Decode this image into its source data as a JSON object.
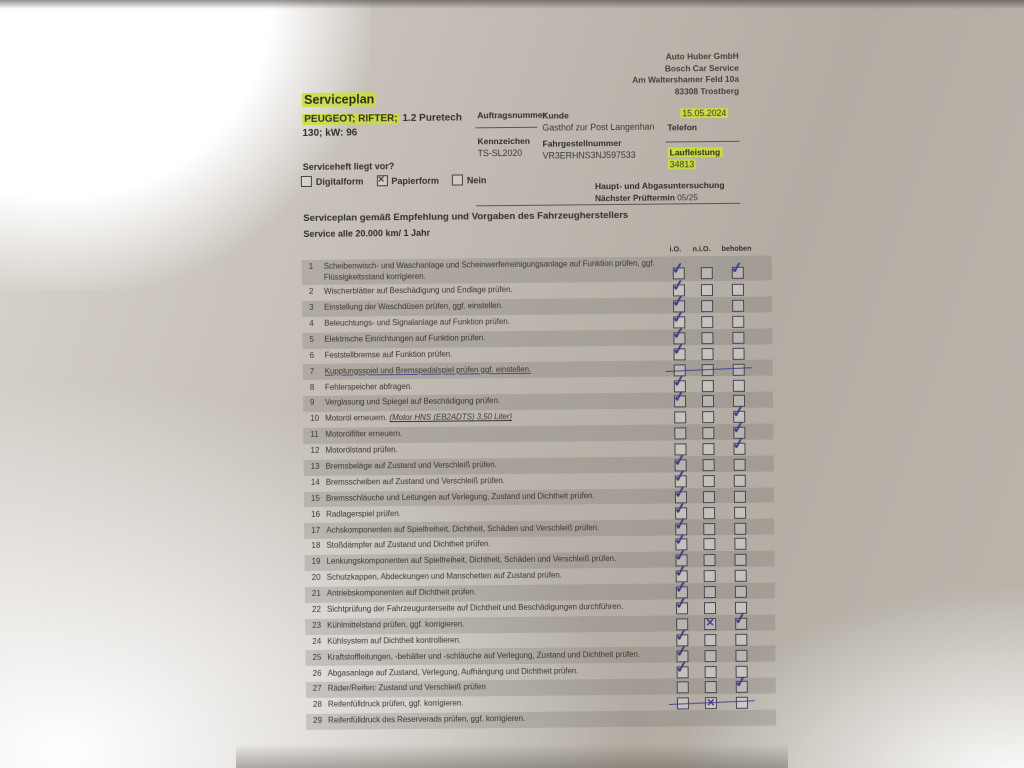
{
  "colors": {
    "highlight": "#cbdf37",
    "ink": "#3c3b8e"
  },
  "letterhead": {
    "lines": [
      "Auto Huber GmbH",
      "Bosch Car Service",
      "Am Waltershamer Feld 10a",
      "83308 Trostberg"
    ]
  },
  "header": {
    "title": "Serviceplan",
    "vehicle_highlight": "PEUGEOT; RIFTER;",
    "vehicle_rest": " 1.2 Puretech",
    "vehicle_line2": "130; kW: 96",
    "serviceheft_question": "Serviceheft liegt vor?",
    "serviceheft_options": [
      {
        "label": "Digitalform",
        "checked": false
      },
      {
        "label": "Papierform",
        "checked": true
      },
      {
        "label": "Nein",
        "checked": false
      }
    ],
    "auftragsnummer_label": "Auftragsnummer",
    "kunde_label": "Kunde",
    "kunde_value": "Gasthof zur Post Langenhan",
    "kennzeichen_label": "Kennzeichen",
    "kennzeichen_value": "TS-SL2020",
    "fahrgestellnummer_label": "Fahrgestellnummer",
    "fahrgestellnummer_value": "VR3ERHNS3NJ597533",
    "date_value": "15.05.2024",
    "telefon_label": "Telefon",
    "laufleistung_label": "Laufleistung",
    "laufleistung_value": "34813",
    "inspection_line1": "Haupt- und Abgasuntersuchung",
    "inspection_label": "Nächster Prüftermin",
    "inspection_value": "05/25"
  },
  "section": {
    "heading": "Serviceplan gemäß Empfehlung und Vorgaben des Fahrzeugherstellers",
    "subheading": "Service alle 20.000 km/ 1 Jahr"
  },
  "checklist": {
    "columns": [
      "i.O.",
      "n.i.O.",
      "behoben"
    ],
    "items": [
      {
        "num": 1,
        "text": "Scheibenwisch- und Waschanlage und Scheinwerferreinigungsanlage auf Funktion prüfen, ggf. Flüssigkeitsstand korrigieren.",
        "note": "",
        "io": "check",
        "nio": "",
        "behoben": "check",
        "struck": false,
        "text_struck": false
      },
      {
        "num": 2,
        "text": "Wischerblätter auf Beschädigung und Endlage prüfen.",
        "note": "",
        "io": "check",
        "nio": "",
        "behoben": "",
        "struck": false,
        "text_struck": false
      },
      {
        "num": 3,
        "text": "Einstellung der Waschdüsen prüfen, ggf. einstellen.",
        "note": "",
        "io": "check",
        "nio": "",
        "behoben": "",
        "struck": false,
        "text_struck": false
      },
      {
        "num": 4,
        "text": "Beleuchtungs- und Signalanlage auf Funktion prüfen.",
        "note": "",
        "io": "check",
        "nio": "",
        "behoben": "",
        "struck": false,
        "text_struck": false
      },
      {
        "num": 5,
        "text": "Elektrische Einrichtungen auf Funktion prüfen.",
        "note": "",
        "io": "check",
        "nio": "",
        "behoben": "",
        "struck": false,
        "text_struck": false
      },
      {
        "num": 6,
        "text": "Feststellbremse auf Funktion prüfen.",
        "note": "",
        "io": "check",
        "nio": "",
        "behoben": "",
        "struck": false,
        "text_struck": false
      },
      {
        "num": 7,
        "text": "Kupplungsspiel und Bremspedalspiel prüfen ggf. einstellen.",
        "note": "",
        "io": "",
        "nio": "",
        "behoben": "",
        "struck": true,
        "text_struck": true
      },
      {
        "num": 8,
        "text": "Fehlerspeicher abfragen.",
        "note": "",
        "io": "check",
        "nio": "",
        "behoben": "",
        "struck": false,
        "text_struck": false
      },
      {
        "num": 9,
        "text": "Verglasung und Spiegel auf Beschädigung prüfen.",
        "note": "",
        "io": "check",
        "nio": "",
        "behoben": "",
        "struck": false,
        "text_struck": false
      },
      {
        "num": 10,
        "text": "Motoröl erneuern. ",
        "note": "(Motor HNS (EB2ADTS) 3,50 Liter)",
        "io": "",
        "nio": "",
        "behoben": "check",
        "struck": false,
        "text_struck": false
      },
      {
        "num": 11,
        "text": "Motorölfilter erneuern.",
        "note": "",
        "io": "",
        "nio": "",
        "behoben": "check",
        "struck": false,
        "text_struck": false
      },
      {
        "num": 12,
        "text": "Motorölstand prüfen.",
        "note": "",
        "io": "",
        "nio": "",
        "behoben": "check",
        "struck": false,
        "text_struck": false
      },
      {
        "num": 13,
        "text": "Bremsbeläge auf Zustand und Verschleiß prüfen.",
        "note": "",
        "io": "check",
        "nio": "",
        "behoben": "",
        "struck": false,
        "text_struck": false
      },
      {
        "num": 14,
        "text": "Bremsscheiben auf Zustand und Verschleiß prüfen.",
        "note": "",
        "io": "check",
        "nio": "",
        "behoben": "",
        "struck": false,
        "text_struck": false
      },
      {
        "num": 15,
        "text": "Bremsschläuche und Leitungen auf Verlegung, Zustand und Dichtheit prüfen.",
        "note": "",
        "io": "check",
        "nio": "",
        "behoben": "",
        "struck": false,
        "text_struck": false
      },
      {
        "num": 16,
        "text": "Radlagerspiel prüfen.",
        "note": "",
        "io": "check",
        "nio": "",
        "behoben": "",
        "struck": false,
        "text_struck": false
      },
      {
        "num": 17,
        "text": "Achskomponenten auf Spielfreiheit, Dichtheit, Schäden und Verschleiß prüfen.",
        "note": "",
        "io": "check",
        "nio": "",
        "behoben": "",
        "struck": false,
        "text_struck": false
      },
      {
        "num": 18,
        "text": "Stoßdämpfer auf Zustand und Dichtheit prüfen.",
        "note": "",
        "io": "check",
        "nio": "",
        "behoben": "",
        "struck": false,
        "text_struck": false
      },
      {
        "num": 19,
        "text": "Lenkungskomponenten auf Spielfreiheit, Dichtheit, Schäden und Verschleiß prüfen.",
        "note": "",
        "io": "check",
        "nio": "",
        "behoben": "",
        "struck": false,
        "text_struck": false
      },
      {
        "num": 20,
        "text": "Schutzkappen, Abdeckungen und Manschetten auf Zustand prüfen.",
        "note": "",
        "io": "check",
        "nio": "",
        "behoben": "",
        "struck": false,
        "text_struck": false
      },
      {
        "num": 21,
        "text": "Antriebskomponenten auf Dichtheit prüfen.",
        "note": "",
        "io": "check",
        "nio": "",
        "behoben": "",
        "struck": false,
        "text_struck": false
      },
      {
        "num": 22,
        "text": "Sichtprüfung der Fahrzeugunterseite auf Dichtheit und Beschädigungen durchführen.",
        "note": "",
        "io": "check",
        "nio": "",
        "behoben": "",
        "struck": false,
        "text_struck": false
      },
      {
        "num": 23,
        "text": "Kühlmittelstand prüfen, ggf. korrigieren.",
        "note": "",
        "io": "",
        "nio": "x",
        "behoben": "check",
        "struck": false,
        "text_struck": false
      },
      {
        "num": 24,
        "text": "Kühlsystem auf Dichtheit kontrollieren.",
        "note": "",
        "io": "check",
        "nio": "",
        "behoben": "",
        "struck": false,
        "text_struck": false
      },
      {
        "num": 25,
        "text": "Kraftstoffleitungen, -behälter und -schläuche auf Verlegung, Zustand und Dichtheit prüfen.",
        "note": "",
        "io": "check",
        "nio": "",
        "behoben": "",
        "struck": false,
        "text_struck": false
      },
      {
        "num": 26,
        "text": "Abgasanlage auf Zustand, Verlegung, Aufhängung und Dichtheit prüfen.",
        "note": "",
        "io": "check",
        "nio": "",
        "behoben": "",
        "struck": false,
        "text_struck": false
      },
      {
        "num": 27,
        "text": "Räder/Reifen: Zustand und Verschleiß prüfen",
        "note": "",
        "io": "",
        "nio": "",
        "behoben": "check",
        "struck": false,
        "text_struck": false
      },
      {
        "num": 28,
        "text": "Reifenfülldruck prüfen, ggf. korrigieren.",
        "note": "",
        "io": "",
        "nio": "x",
        "behoben": "",
        "struck": true,
        "text_struck": false
      },
      {
        "num": 29,
        "text": "Reifenfülldruck des Reserverads prüfen, ggf. korrigieren.",
        "note": "",
        "io": "none",
        "nio": "none",
        "behoben": "none",
        "struck": false,
        "text_struck": false
      }
    ]
  }
}
